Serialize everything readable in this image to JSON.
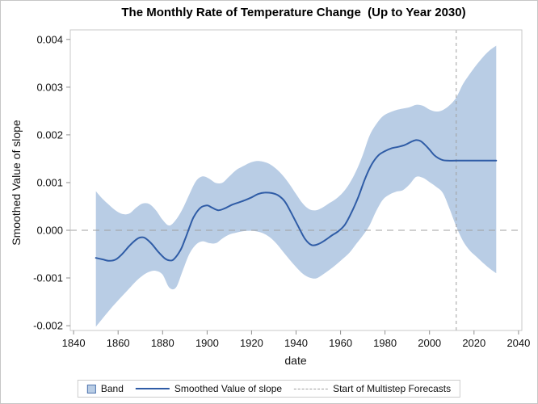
{
  "figure": {
    "title": "The Monthly Rate of Temperature Change  (Up to Year 2030)"
  },
  "chart_data": {
    "type": "line",
    "title": "The Monthly Rate of Temperature Change  (Up to Year 2030)",
    "xlabel": "date",
    "ylabel": "Smoothed Value of slope",
    "xlim": [
      1838.5,
      2041.5
    ],
    "ylim": [
      -0.0021,
      0.0042
    ],
    "grid": false,
    "legend_position": "bottom",
    "xticks": {
      "values": [
        1840,
        1860,
        1880,
        1900,
        1920,
        1940,
        1960,
        1980,
        2000,
        2020,
        2040
      ],
      "labels": [
        "1840",
        "1860",
        "1880",
        "1900",
        "1920",
        "1940",
        "1960",
        "1980",
        "2000",
        "2020",
        "2040"
      ]
    },
    "yticks": {
      "values": [
        0.004,
        0.003,
        0.002,
        0.001,
        0.0,
        -0.001,
        -0.002
      ],
      "labels": [
        "0.004",
        "0.003",
        "0.002",
        "0.001",
        "0.000",
        "-0.001",
        "-0.002"
      ]
    },
    "series": [
      {
        "name": "Band",
        "type": "band",
        "fill_color": "#b9cde5",
        "border_color": "#4f74ae",
        "x": [
          1850,
          1853,
          1856,
          1859,
          1862,
          1865,
          1868,
          1871,
          1874,
          1877,
          1880,
          1883,
          1886,
          1889,
          1892,
          1895,
          1898,
          1901,
          1904,
          1907,
          1910,
          1913,
          1916,
          1919,
          1922,
          1925,
          1928,
          1931,
          1934,
          1937,
          1940,
          1943,
          1946,
          1949,
          1952,
          1955,
          1958,
          1961,
          1964,
          1967,
          1970,
          1973,
          1976,
          1979,
          1982,
          1985,
          1988,
          1991,
          1994,
          1997,
          2000,
          2003,
          2006,
          2009,
          2012,
          2015,
          2018,
          2021,
          2024,
          2027,
          2030
        ],
        "upper": [
          0.00082,
          0.00066,
          0.00053,
          0.00041,
          0.00034,
          0.00035,
          0.00047,
          0.00056,
          0.00055,
          0.00042,
          0.00022,
          0.0001,
          0.00022,
          0.00045,
          0.00075,
          0.00103,
          0.00113,
          0.00108,
          0.00099,
          0.001,
          0.00113,
          0.00126,
          0.00134,
          0.00141,
          0.00145,
          0.00144,
          0.00139,
          0.00129,
          0.00115,
          0.00097,
          0.00076,
          0.00056,
          0.00044,
          0.00042,
          0.00048,
          0.00057,
          0.00066,
          0.00079,
          0.00098,
          0.00124,
          0.00158,
          0.00198,
          0.00222,
          0.00239,
          0.00247,
          0.00252,
          0.00255,
          0.00258,
          0.00263,
          0.00261,
          0.00253,
          0.00249,
          0.00252,
          0.00262,
          0.00278,
          0.00306,
          0.00327,
          0.00346,
          0.00363,
          0.00377,
          0.00387
        ],
        "lower": [
          -0.00202,
          -0.00185,
          -0.00168,
          -0.00152,
          -0.00137,
          -0.00122,
          -0.00107,
          -0.00095,
          -0.00087,
          -0.00085,
          -0.00093,
          -0.0012,
          -0.0012,
          -0.00085,
          -0.0005,
          -0.0003,
          -0.00023,
          -0.00027,
          -0.00027,
          -0.00017,
          -9e-05,
          -5e-05,
          -2e-05,
          -1e-05,
          -2e-05,
          -6e-05,
          -0.00014,
          -0.00027,
          -0.00044,
          -0.00061,
          -0.00077,
          -0.00091,
          -0.00099,
          -0.00101,
          -0.00093,
          -0.00083,
          -0.00072,
          -0.0006,
          -0.00047,
          -0.00029,
          -0.00011,
          0.0001,
          0.0004,
          0.00064,
          0.00075,
          0.00081,
          0.00084,
          0.00096,
          0.00112,
          0.0011,
          0.00101,
          0.00091,
          0.00078,
          0.00045,
          8e-05,
          -0.00022,
          -0.00042,
          -0.00055,
          -0.00068,
          -0.0008,
          -0.0009
        ]
      },
      {
        "name": "Smoothed Value of slope",
        "type": "line",
        "color": "#2f5ca6",
        "x": [
          1850,
          1853,
          1856,
          1859,
          1862,
          1865,
          1868,
          1870,
          1872,
          1875,
          1878,
          1881,
          1883,
          1885,
          1888,
          1890,
          1892,
          1894,
          1897,
          1900,
          1902,
          1905,
          1908,
          1911,
          1914,
          1917,
          1920,
          1923,
          1926,
          1929,
          1932,
          1935,
          1938,
          1941,
          1944,
          1947,
          1950,
          1953,
          1956,
          1959,
          1962,
          1965,
          1968,
          1971,
          1974,
          1977,
          1980,
          1983,
          1986,
          1989,
          1992,
          1994,
          1996,
          1998,
          2000,
          2002,
          2004,
          2006,
          2008,
          2012,
          2020,
          2030
        ],
        "y": [
          -0.00058,
          -0.00061,
          -0.00064,
          -0.00061,
          -0.00049,
          -0.00033,
          -0.0002,
          -0.00015,
          -0.00016,
          -0.00028,
          -0.00045,
          -0.00059,
          -0.00063,
          -0.00061,
          -0.00042,
          -0.0002,
          5e-05,
          0.00028,
          0.00047,
          0.00052,
          0.00048,
          0.00042,
          0.00046,
          0.00053,
          0.00058,
          0.00063,
          0.00069,
          0.00076,
          0.00079,
          0.00078,
          0.00073,
          0.0006,
          0.00035,
          8e-05,
          -0.00018,
          -0.00031,
          -0.00029,
          -0.00021,
          -0.00011,
          -2e-05,
          0.00012,
          0.00038,
          0.0007,
          0.00108,
          0.00138,
          0.00157,
          0.00166,
          0.00172,
          0.00175,
          0.00179,
          0.00186,
          0.00189,
          0.00187,
          0.00179,
          0.00169,
          0.00158,
          0.00151,
          0.00147,
          0.00146,
          0.00146,
          0.00146,
          0.00146
        ]
      }
    ],
    "reference_lines": [
      {
        "orientation": "horizontal",
        "value": 0,
        "style": "dashed",
        "color": "#a0a0a0"
      },
      {
        "orientation": "vertical",
        "value": 2012,
        "style": "dashed",
        "color": "#9e9e9e",
        "label": "Start of Multistep Forecasts"
      }
    ]
  },
  "legend": {
    "items": [
      {
        "label": "Band"
      },
      {
        "label": "Smoothed Value of slope"
      },
      {
        "label": "Start of Multistep Forecasts"
      }
    ]
  }
}
